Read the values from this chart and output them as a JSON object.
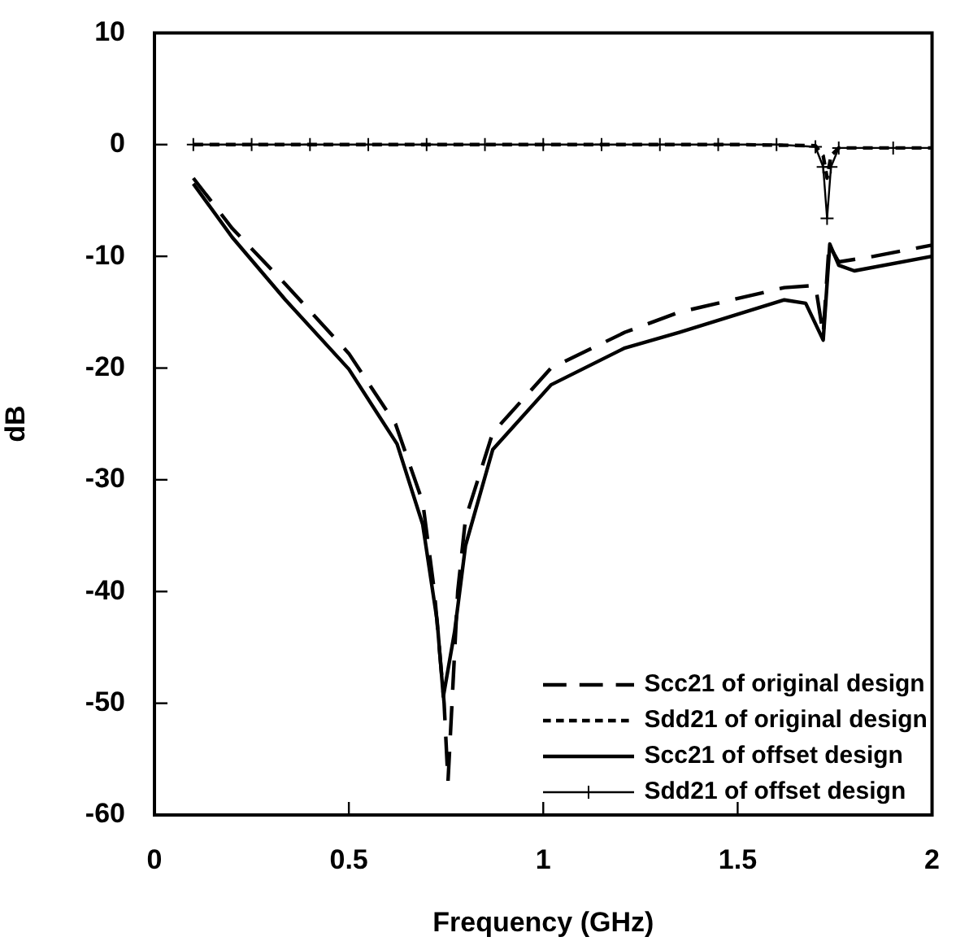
{
  "chart_data": {
    "type": "line",
    "xlabel": "Frequency (GHz)",
    "ylabel": "dB",
    "xlim": [
      0,
      2
    ],
    "xticks": [
      0,
      0.5,
      1,
      1.5,
      2
    ],
    "ylim": [
      -60,
      10
    ],
    "yticks": [
      10,
      0,
      -10,
      -20,
      -30,
      -40,
      -50,
      -60
    ],
    "grid": false,
    "legend": "bottom right",
    "series": [
      {
        "name": "Scc21 of original design",
        "color": "#000000",
        "line_style": "dashed",
        "x": [
          0.1,
          0.2,
          0.337,
          0.5,
          0.62,
          0.69,
          0.72,
          0.745,
          0.755,
          0.78,
          0.8,
          0.87,
          1.02,
          1.21,
          1.35,
          1.62,
          1.7,
          1.72,
          1.735,
          1.76,
          1.85,
          2.0
        ],
        "values": [
          -3,
          -7.5,
          -12.5,
          -18.7,
          -25,
          -32,
          -40,
          -50,
          -57,
          -40,
          -33.5,
          -25.8,
          -20,
          -16.8,
          -15,
          -12.8,
          -12.6,
          -17,
          -9,
          -10.5,
          -10,
          -9
        ]
      },
      {
        "name": "Sdd21 of original design",
        "color": "#000000",
        "line_style": "dotted",
        "x": [
          0.1,
          0.5,
          1.0,
          1.5,
          1.7,
          1.72,
          1.73,
          1.74,
          1.76,
          1.85,
          2.0
        ],
        "values": [
          0,
          0,
          0,
          0,
          -0.1,
          -1,
          -3,
          -1,
          -0.3,
          -0.3,
          -0.3
        ]
      },
      {
        "name": "Scc21 of offset design",
        "color": "#000000",
        "line_style": "solid",
        "x": [
          0.1,
          0.2,
          0.337,
          0.5,
          0.624,
          0.69,
          0.727,
          0.743,
          0.772,
          0.8,
          0.87,
          1.02,
          1.21,
          1.35,
          1.62,
          1.675,
          1.72,
          1.737,
          1.76,
          1.8,
          2.0
        ],
        "values": [
          -3.5,
          -8.3,
          -13.9,
          -20.1,
          -26.8,
          -34,
          -42.6,
          -49.4,
          -43.6,
          -35.9,
          -27.3,
          -21.5,
          -18.2,
          -16.8,
          -13.9,
          -14.2,
          -17.5,
          -8.9,
          -10.8,
          -11.3,
          -10
        ]
      },
      {
        "name": "Sdd21 of offset design",
        "color": "#000000",
        "line_style": "solid",
        "marker": "cross",
        "x": [
          0.1,
          0.25,
          0.4,
          0.55,
          0.7,
          0.85,
          1.0,
          1.15,
          1.3,
          1.45,
          1.6,
          1.7,
          1.72,
          1.73,
          1.74,
          1.76,
          1.9,
          2.0
        ],
        "values": [
          0,
          0,
          0,
          0,
          0,
          0,
          0,
          0,
          0,
          0,
          0,
          -0.2,
          -2,
          -6.6,
          -2,
          -0.3,
          -0.3,
          -0.3
        ]
      }
    ]
  }
}
